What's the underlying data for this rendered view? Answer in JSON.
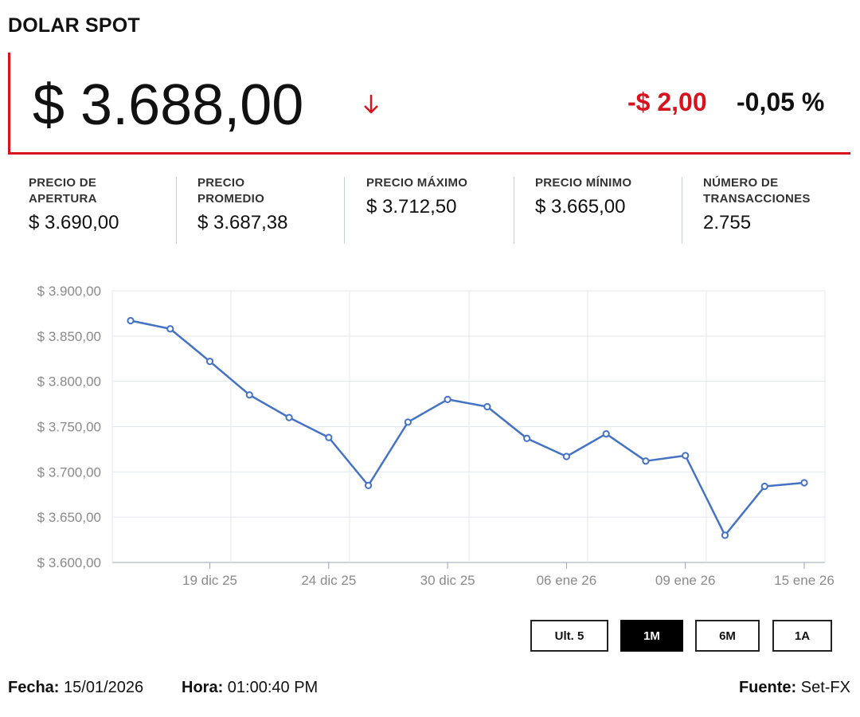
{
  "title": "DOLAR SPOT",
  "quote": {
    "price": "$ 3.688,00",
    "change": "-$ 2,00",
    "change_pct": "-0,05 %",
    "direction_icon": "arrow-down-icon",
    "down_color": "#d7141d"
  },
  "stats": [
    {
      "label_lines": [
        "PRECIO DE",
        "APERTURA"
      ],
      "value": "$ 3.690,00"
    },
    {
      "label_lines": [
        "PRECIO",
        "PROMEDIO"
      ],
      "value": "$ 3.687,38"
    },
    {
      "label_lines": [
        "PRECIO MÁXIMO"
      ],
      "value": "$ 3.712,50"
    },
    {
      "label_lines": [
        "PRECIO MÍNIMO"
      ],
      "value": "$ 3.665,00"
    },
    {
      "label_lines": [
        "NÚMERO DE",
        "TRANSACCIONES"
      ],
      "value": "2.755"
    }
  ],
  "chart_data": {
    "type": "line",
    "line_color": "#4472c4",
    "grid": true,
    "ylim": [
      3600,
      3900
    ],
    "y_ticks": [
      3900,
      3850,
      3800,
      3750,
      3700,
      3650,
      3600
    ],
    "y_tick_labels": [
      "$ 3.900,00",
      "$ 3.850,00",
      "$ 3.800,00",
      "$ 3.750,00",
      "$ 3.700,00",
      "$ 3.650,00",
      "$ 3.600,00"
    ],
    "x_tick_labels": [
      {
        "index": 2,
        "label": "19 dic 25"
      },
      {
        "index": 5,
        "label": "24 dic 25"
      },
      {
        "index": 8,
        "label": "30 dic 25"
      },
      {
        "index": 11,
        "label": "06 ene 26"
      },
      {
        "index": 14,
        "label": "09 ene 26"
      },
      {
        "index": 17,
        "label": "15 ene 26"
      }
    ],
    "values": [
      3867,
      3858,
      3822,
      3785,
      3760,
      3738,
      3685,
      3755,
      3780,
      3772,
      3737,
      3717,
      3742,
      3712,
      3718,
      3630,
      3684,
      3688
    ]
  },
  "ranges": [
    {
      "label": "Ult. 5",
      "active": false
    },
    {
      "label": "1M",
      "active": true
    },
    {
      "label": "6M",
      "active": false
    },
    {
      "label": "1A",
      "active": false
    }
  ],
  "footer": {
    "fecha_label": "Fecha:",
    "fecha_value": "15/01/2026",
    "hora_label": "Hora:",
    "hora_value": "01:00:40 PM",
    "fuente_label": "Fuente:",
    "fuente_value": "Set-FX"
  }
}
